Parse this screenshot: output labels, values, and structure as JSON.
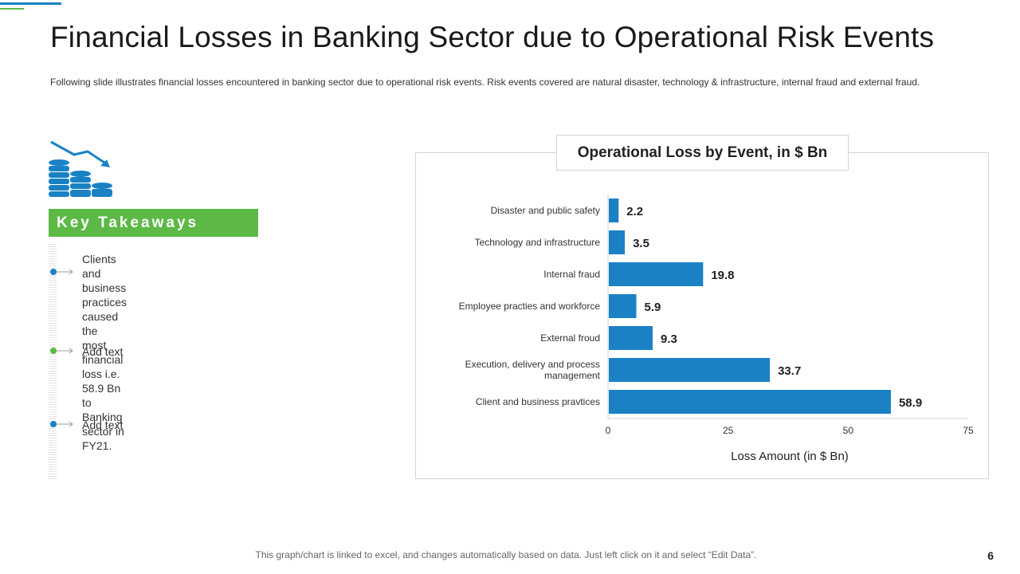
{
  "slide": {
    "title": "Financial Losses in Banking Sector due to Operational Risk Events",
    "subtitle": "Following slide illustrates financial losses encountered in banking sector due to operational risk events. Risk events covered are natural disaster, technology & infrastructure, internal fraud and external fraud.",
    "footer": "This graph/chart is linked to excel, and changes automatically based on data. Just left click on it and select “Edit Data”.",
    "page_number": "6",
    "icon": "coins-decline-icon"
  },
  "takeaways": {
    "heading": "Key Takeaways",
    "items": [
      {
        "text": "Clients and business practices caused the\nmost financial loss i.e. 58.9 Bn to Banking\nsector in FY21.",
        "color": "#1a82c4"
      },
      {
        "text": "Add text",
        "color": "#5cb946"
      },
      {
        "text": "Add text",
        "color": "#1a82c4"
      }
    ]
  },
  "colors": {
    "primary_blue": "#1a82c4",
    "green": "#5cb946"
  },
  "chart_data": {
    "type": "bar",
    "orientation": "horizontal",
    "title": "Operational Loss by Event, in $ Bn",
    "xlabel": "Loss Amount  (in $ Bn)",
    "ylabel": "",
    "categories": [
      "Disaster and public safety",
      "Technology and infrastructure",
      "Internal fraud",
      "Employee practies and workforce",
      "External froud",
      "Execution, delivery and process management",
      "Client and business pravtices"
    ],
    "values": [
      2.2,
      3.5,
      19.8,
      5.9,
      9.3,
      33.7,
      58.9
    ],
    "xlim": [
      0,
      75
    ],
    "xticks": [
      0,
      25,
      50,
      75
    ],
    "grid": false,
    "bar_color": "#1a82c4"
  }
}
